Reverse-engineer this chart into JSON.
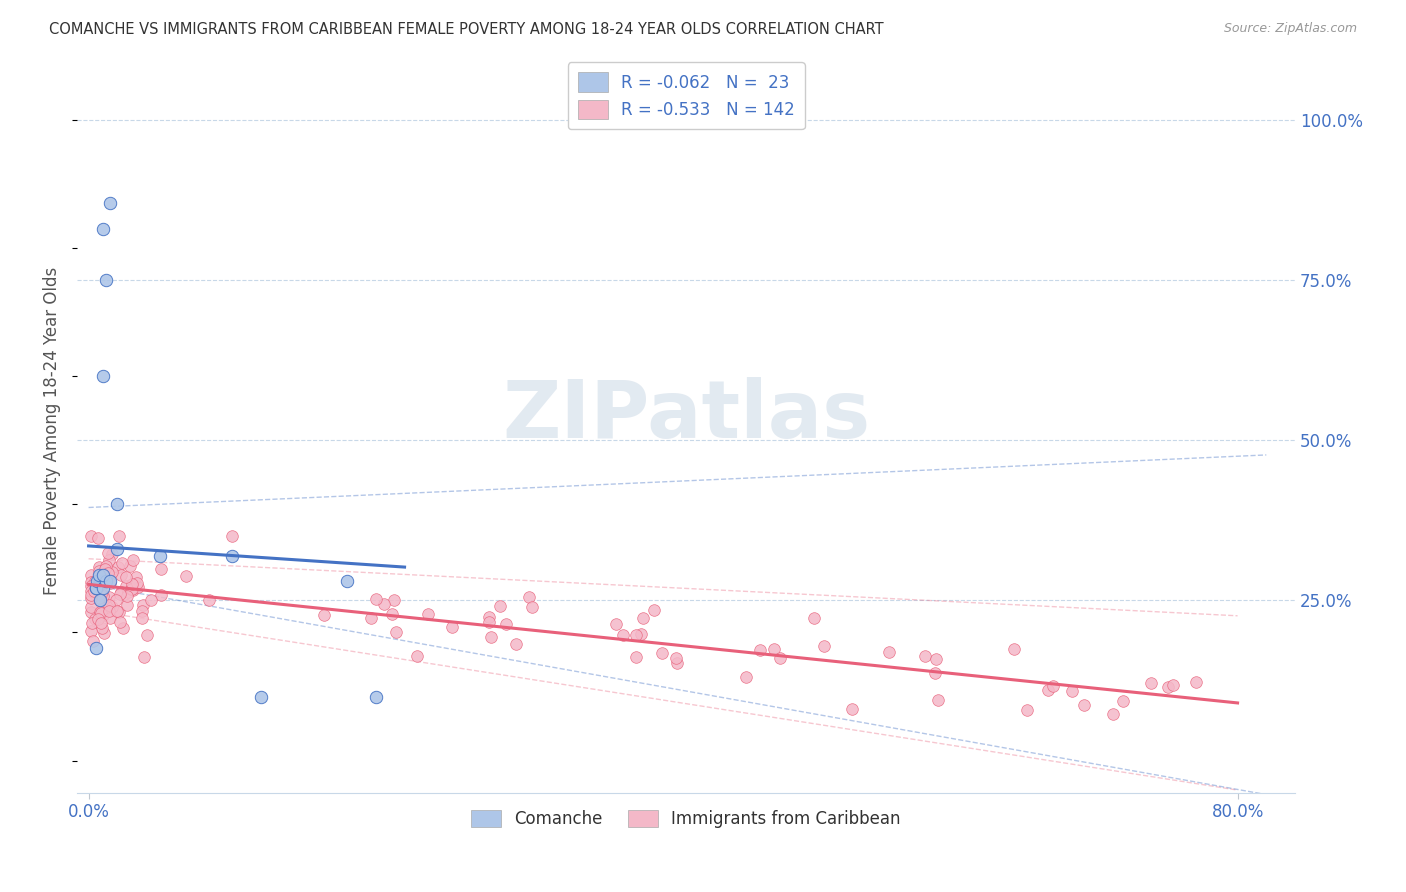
{
  "title": "COMANCHE VS IMMIGRANTS FROM CARIBBEAN FEMALE POVERTY AMONG 18-24 YEAR OLDS CORRELATION CHART",
  "source": "Source: ZipAtlas.com",
  "ylabel": "Female Poverty Among 18-24 Year Olds",
  "comanche_color": "#aec6e8",
  "caribbean_color": "#f4b8c8",
  "comanche_line_color": "#4472c4",
  "caribbean_line_color": "#e8607a",
  "R_comanche": -0.062,
  "N_comanche": 23,
  "R_caribbean": -0.533,
  "N_caribbean": 142,
  "legend_text_color": "#4472c4",
  "right_axis_color": "#4472c4",
  "watermark_color": "#d0dce8"
}
